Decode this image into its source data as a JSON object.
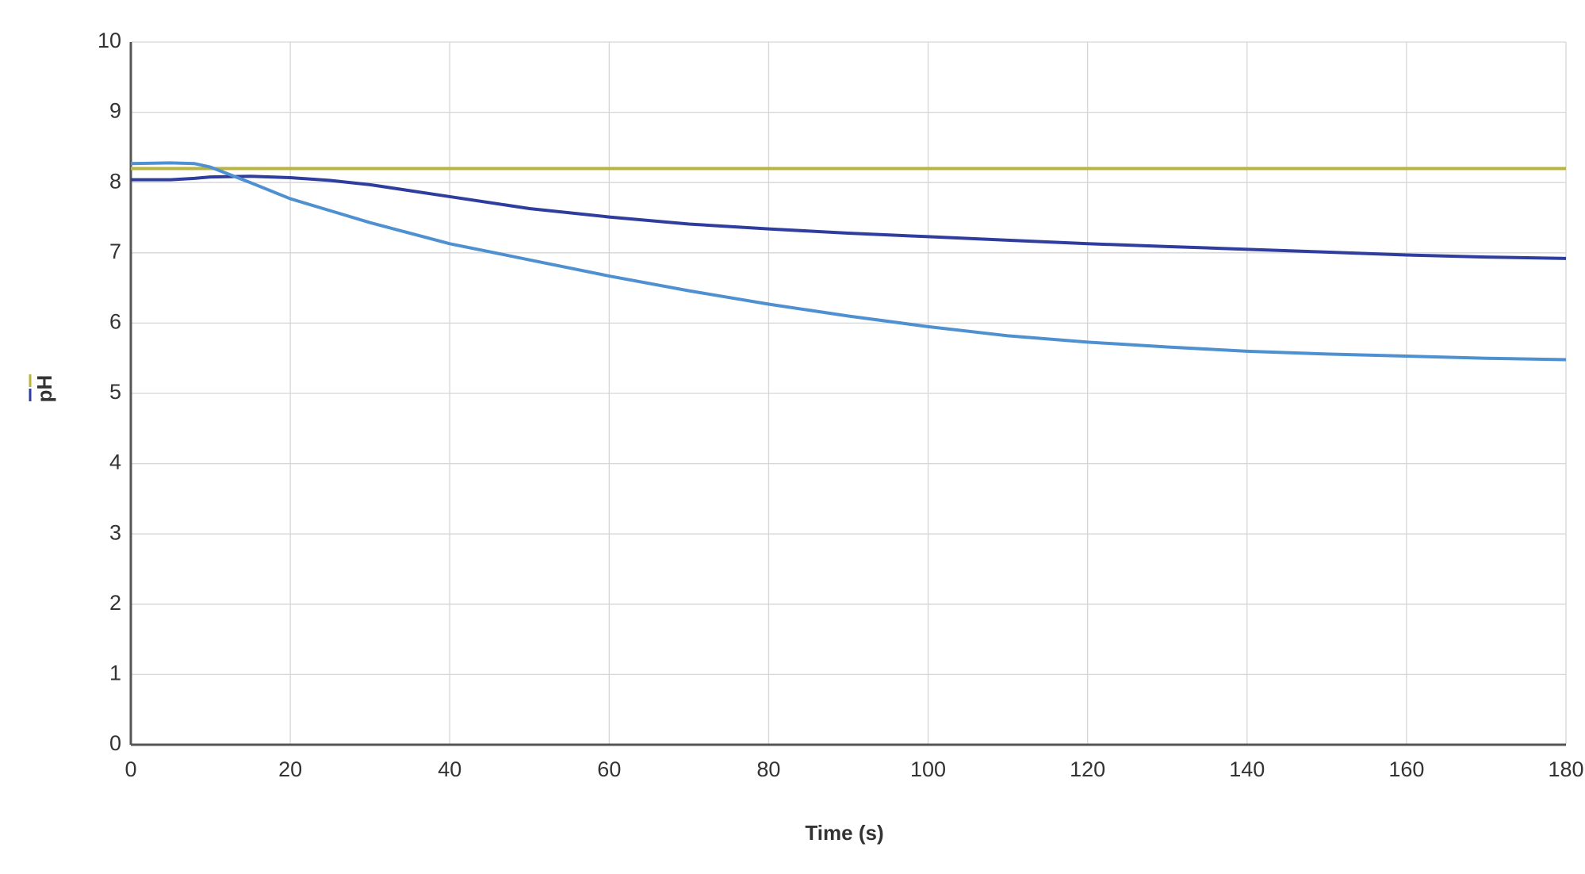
{
  "chart_data": {
    "type": "line",
    "x_label": "Time (s)",
    "y_label": "pH",
    "x": [
      0,
      5,
      8,
      10,
      15,
      20,
      25,
      30,
      40,
      50,
      60,
      70,
      80,
      90,
      100,
      110,
      120,
      130,
      140,
      150,
      160,
      170,
      180
    ],
    "series": [
      {
        "color": "#b8b43c",
        "values": [
          8.2,
          8.2,
          8.2,
          8.2,
          8.2,
          8.2,
          8.2,
          8.2,
          8.2,
          8.2,
          8.2,
          8.2,
          8.2,
          8.2,
          8.2,
          8.2,
          8.2,
          8.2,
          8.2,
          8.2,
          8.2,
          8.2,
          8.2
        ]
      },
      {
        "color": "#2e3d9e",
        "values": [
          8.04,
          8.04,
          8.06,
          8.08,
          8.09,
          8.07,
          8.03,
          7.97,
          7.8,
          7.63,
          7.51,
          7.41,
          7.34,
          7.28,
          7.23,
          7.18,
          7.13,
          7.09,
          7.05,
          7.01,
          6.97,
          6.94,
          6.92
        ]
      },
      {
        "color": "#4f90d0",
        "values": [
          8.27,
          8.28,
          8.27,
          8.22,
          8.0,
          7.77,
          7.6,
          7.43,
          7.13,
          6.9,
          6.67,
          6.46,
          6.27,
          6.1,
          5.95,
          5.82,
          5.73,
          5.66,
          5.6,
          5.56,
          5.53,
          5.5,
          5.48
        ]
      }
    ],
    "xlim": [
      0,
      180
    ],
    "xticks": [
      0,
      20,
      40,
      60,
      80,
      100,
      120,
      140,
      160,
      180
    ],
    "ylim": [
      0,
      10
    ],
    "yticks": [
      0,
      1,
      2,
      3,
      4,
      5,
      6,
      7,
      8,
      9,
      10
    ],
    "grid": true
  }
}
